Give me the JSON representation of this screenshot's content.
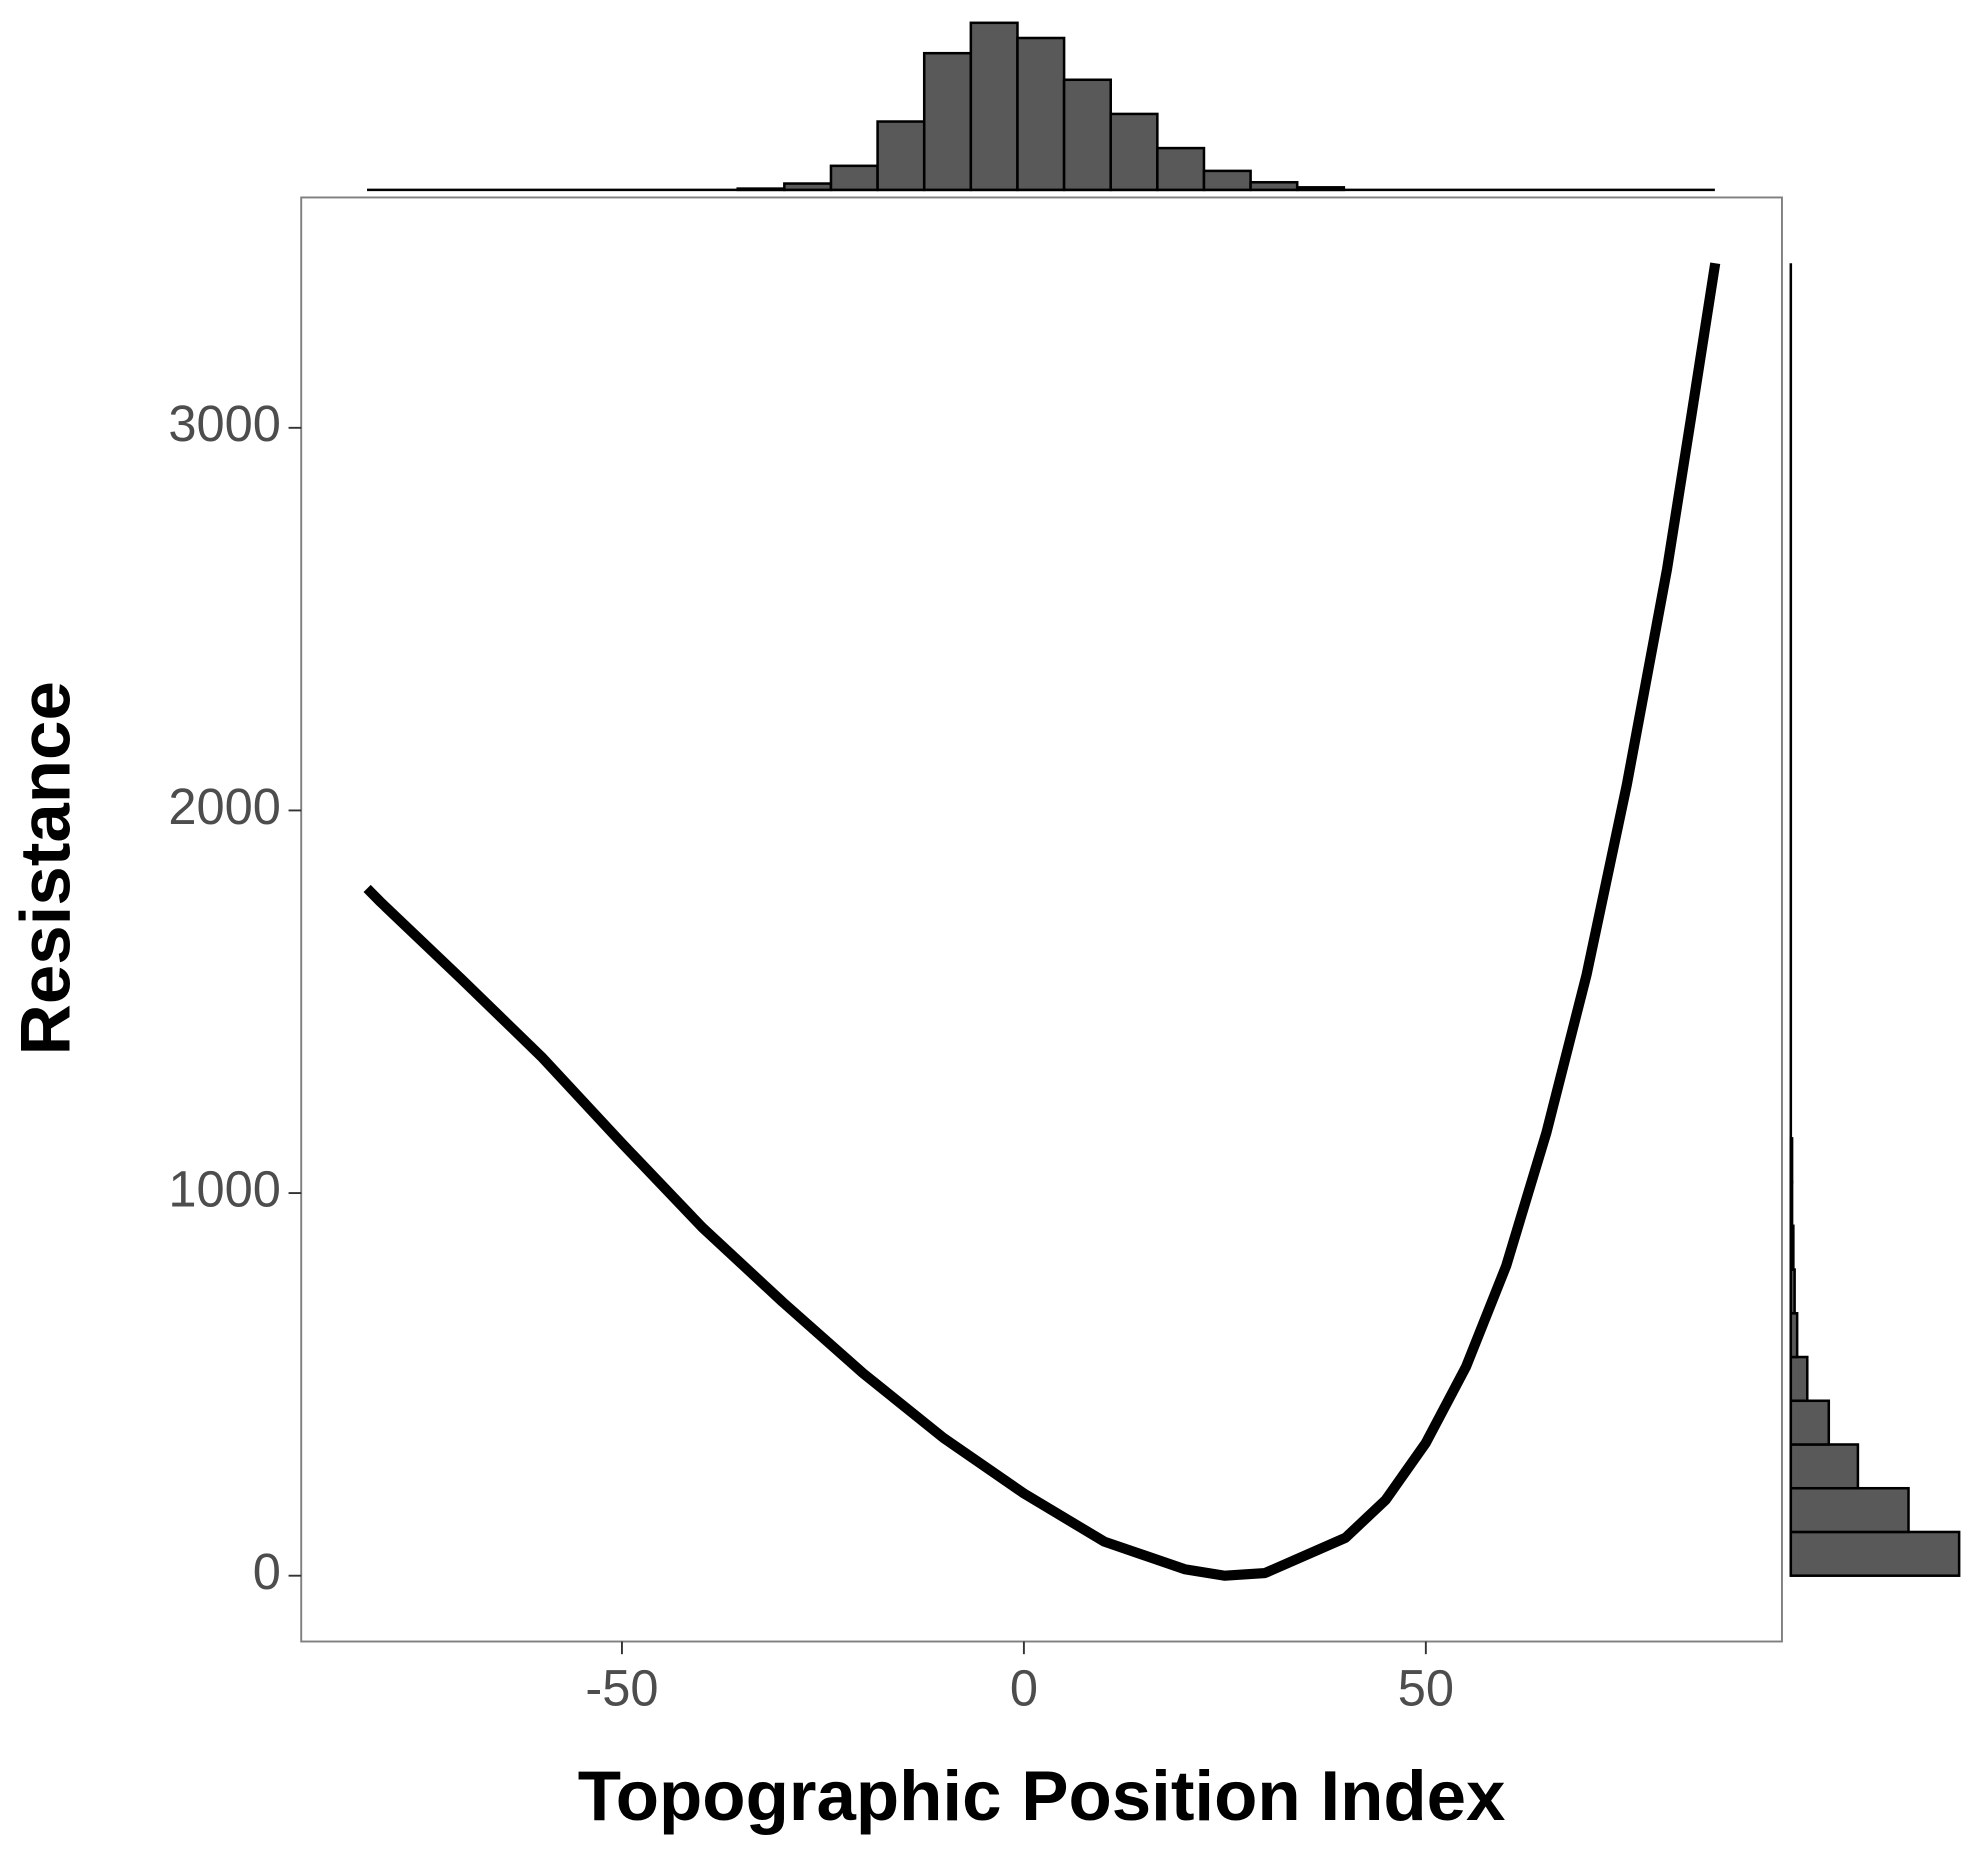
{
  "chart_data": {
    "type": "line",
    "x_label": "Topographic Position Index",
    "y_label": "Resistance",
    "x": [
      -81.7,
      -80,
      -70,
      -60,
      -50,
      -40,
      -30,
      -20,
      -10,
      0,
      10,
      20,
      25,
      30,
      40,
      45,
      50,
      55,
      60,
      65,
      70,
      75,
      80,
      83,
      86
    ],
    "values": [
      1796,
      1760,
      1560,
      1356,
      1130,
      910,
      715,
      529,
      360,
      215,
      89,
      17,
      0,
      7,
      99,
      198,
      347,
      546,
      810,
      1158,
      1571,
      2067,
      2630,
      3027,
      3430
    ],
    "color": "#000000",
    "xlim": [
      -89.9,
      94.3
    ],
    "ylim": [
      -172,
      3602
    ],
    "xticks": [
      -50,
      0,
      50
    ],
    "yticks": [
      0,
      1000,
      2000,
      3000
    ],
    "marginal_x": {
      "type": "histogram",
      "color": "#595959",
      "bins": [
        -82,
        -76.2,
        -70.4,
        -64.6,
        -58.8,
        -53,
        -47.2,
        -41.4,
        -35.6,
        -29.8,
        -24,
        -18.2,
        -12.4,
        -6.6,
        -0.8,
        5,
        10.8,
        16.6,
        22.4,
        28.2,
        34,
        39.8,
        45.6,
        51.4,
        57.2,
        63,
        68.8,
        74.6,
        80.4,
        86.2
      ],
      "counts": [
        0,
        0,
        0,
        0,
        0,
        0,
        0,
        0,
        1,
        5,
        19,
        54,
        108,
        132,
        120,
        87,
        60,
        33,
        15,
        6,
        2,
        0,
        0,
        0,
        0,
        0,
        0,
        0,
        0
      ]
    },
    "marginal_y": {
      "type": "histogram",
      "color": "#595959",
      "bins": [
        0,
        114.3,
        228.6,
        342.9,
        457.2,
        571.5,
        685.8,
        800.1,
        914.4,
        1028.7,
        1143,
        1257.3,
        1371.6,
        1485.9,
        1600.2,
        1714.5,
        1828.8,
        1943.1,
        2057.4,
        2171.7,
        2286,
        2400.3,
        2514.6,
        2628.9,
        2743.2,
        2857.5,
        2971.8,
        3086.1,
        3200.4,
        3314.7,
        3429
      ],
      "counts": [
        133,
        93,
        53,
        30,
        13,
        5,
        3,
        2,
        1,
        1,
        0,
        0,
        0,
        0,
        0,
        0,
        0,
        0,
        0,
        0,
        0,
        0,
        0,
        0,
        0,
        0,
        0,
        0,
        0,
        0
      ]
    }
  }
}
